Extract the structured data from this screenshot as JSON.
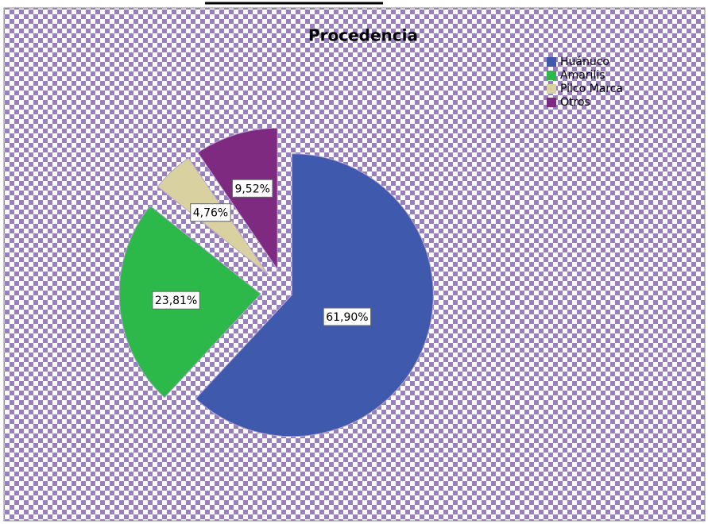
{
  "chart_data": {
    "type": "pie",
    "title": "Procedencia",
    "categories": [
      "Huánuco",
      "Amarilis",
      "Pilco Marca",
      "Otros"
    ],
    "values": [
      61.9,
      23.81,
      4.76,
      9.52
    ],
    "value_labels": [
      "61,90%",
      "23,81%",
      "4,76%",
      "9,52%"
    ],
    "colors": [
      "#3f59ad",
      "#2db84a",
      "#d9d1a0",
      "#7e2a80"
    ],
    "legend": "top-right"
  }
}
